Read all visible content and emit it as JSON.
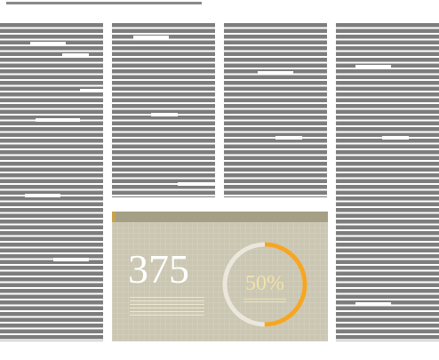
{
  "infographic": {
    "count_value": "375",
    "percent_label": "50%",
    "percent_fraction": 0.5,
    "colors": {
      "panel": "#cac6b2",
      "ring_track": "#ebe7dc",
      "ring_progress": "#f5a623"
    }
  }
}
